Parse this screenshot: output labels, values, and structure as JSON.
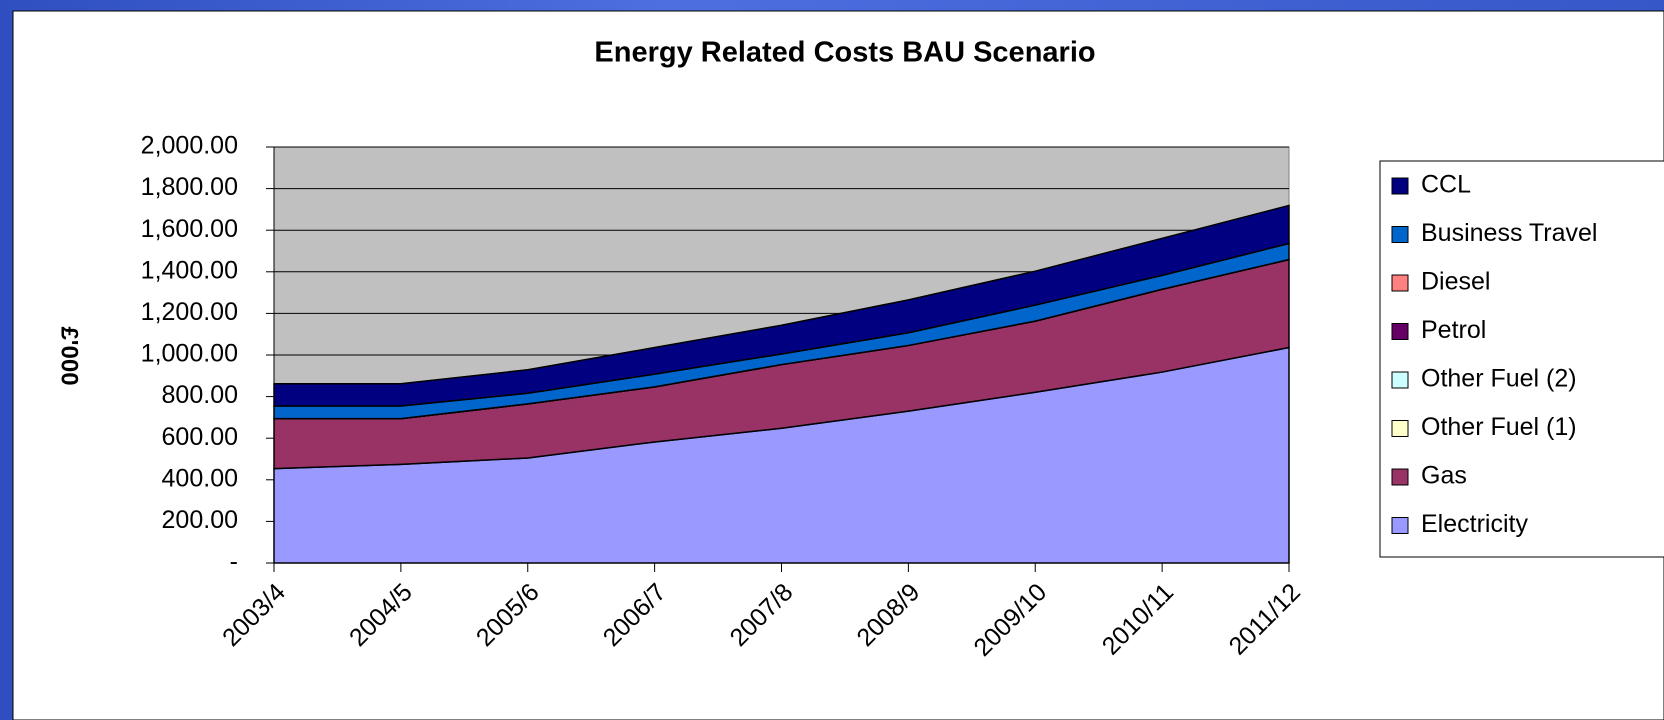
{
  "chart_data": {
    "type": "stacked_area",
    "title": "Energy Related Costs BAU Scenario",
    "y_label": "£'000",
    "categories": [
      "2003/4",
      "2004/5",
      "2005/6",
      "2006/7",
      "2007/8",
      "2008/9",
      "2009/10",
      "2010/11",
      "2011/12"
    ],
    "series": [
      {
        "name": "CCL",
        "color": "#000080",
        "values": [
          107,
          107,
          113,
          128,
          138,
          158,
          163,
          178,
          183
        ]
      },
      {
        "name": "Business Travel",
        "color": "#0066cc",
        "values": [
          61,
          61,
          51,
          61,
          51,
          61,
          77,
          67,
          77
        ]
      },
      {
        "name": "Diesel",
        "color": "#ff8080",
        "values": [
          0,
          0,
          0,
          0,
          0,
          0,
          0,
          0,
          0
        ]
      },
      {
        "name": "Petrol",
        "color": "#660066",
        "values": [
          0,
          0,
          0,
          0,
          0,
          0,
          0,
          0,
          0
        ]
      },
      {
        "name": "Other Fuel (2)",
        "color": "#ccffff",
        "values": [
          0,
          0,
          0,
          0,
          0,
          0,
          0,
          0,
          0
        ]
      },
      {
        "name": "Other Fuel (1)",
        "color": "#ffffcc",
        "values": [
          0,
          0,
          0,
          0,
          0,
          0,
          0,
          0,
          0
        ]
      },
      {
        "name": "Gas",
        "color": "#993366",
        "values": [
          240,
          220,
          260,
          265,
          306,
          316,
          342,
          398,
          423
        ]
      },
      {
        "name": "Electricity",
        "color": "#9999ff",
        "values": [
          454,
          474,
          505,
          582,
          648,
          730,
          821,
          918,
          1036
        ]
      }
    ],
    "ylim": [
      0,
      2000
    ],
    "yticks": [
      {
        "value": 0,
        "label": "-"
      },
      {
        "value": 200,
        "label": "200.00"
      },
      {
        "value": 400,
        "label": "400.00"
      },
      {
        "value": 600,
        "label": "600.00"
      },
      {
        "value": 800,
        "label": "800.00"
      },
      {
        "value": 1000,
        "label": "1,000.00"
      },
      {
        "value": 1200,
        "label": "1,200.00"
      },
      {
        "value": 1400,
        "label": "1,400.00"
      },
      {
        "value": 1600,
        "label": "1,600.00"
      },
      {
        "value": 1800,
        "label": "1,800.00"
      },
      {
        "value": 2000,
        "label": "2,000.00"
      }
    ],
    "grid": true,
    "plot_background": "#c0c0c0",
    "legend": "right"
  }
}
